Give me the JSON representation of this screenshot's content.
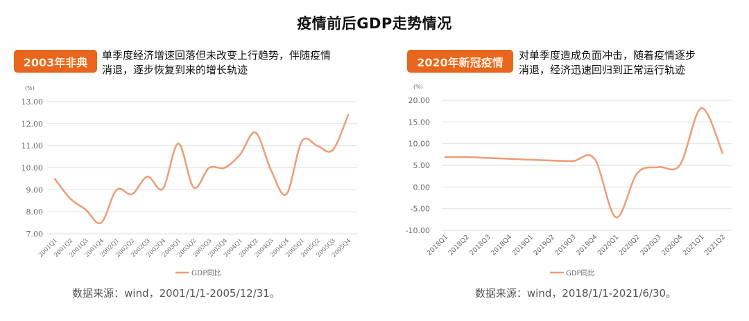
{
  "title": "疫情前后GDP走势情况",
  "colors": {
    "badge": "#E8651E",
    "badge_text": "#FFEFD9",
    "line": "#EC9F78",
    "grid": "#E3E3E3",
    "axis_text": "#666666"
  },
  "panels": [
    {
      "badge": "2003年非典",
      "description_line1": "单季度经济增速回落但未改变上行趋势，伴随疫情",
      "description_line2": "消退，逐步恢复到来的增长轨迹",
      "source": "数据来源：wind，2001/1/1-2005/12/31。"
    },
    {
      "badge": "2020年新冠疫情",
      "description_line1": "对单季度造成负面冲击，随着疫情逐步",
      "description_line2": "消退，经济迅速回归到正常运行轨迹",
      "source": "数据来源：wind，2018/1/1-2021/6/30。"
    }
  ],
  "chart_data": [
    {
      "type": "line",
      "title": "2003年非典",
      "ylabel": "(%)",
      "xlabel": "",
      "ylim": [
        7,
        13
      ],
      "yticks": [
        "7.00",
        "8.00",
        "9.00",
        "10.00",
        "11.00",
        "12.00",
        "13.00"
      ],
      "ytick_values": [
        7,
        8,
        9,
        10,
        11,
        12,
        13
      ],
      "grid": true,
      "legend_position": "bottom",
      "categories": [
        "2001Q1",
        "2001Q2",
        "2001Q3",
        "2001Q4",
        "2002Q1",
        "2002Q2",
        "2002Q3",
        "2002Q4",
        "2003Q1",
        "2003Q2",
        "2003Q3",
        "2003Q4",
        "2004Q1",
        "2004Q2",
        "2004Q3",
        "2004Q4",
        "2005Q1",
        "2005Q2",
        "2005Q3",
        "2005Q4"
      ],
      "series": [
        {
          "name": "GDP同比",
          "values": [
            9.5,
            8.6,
            8.1,
            7.5,
            9.0,
            8.8,
            9.6,
            9.05,
            11.1,
            9.1,
            10.0,
            10.0,
            10.6,
            11.6,
            9.9,
            8.8,
            11.2,
            11.0,
            10.8,
            12.4
          ]
        }
      ]
    },
    {
      "type": "line",
      "title": "2020年新冠疫情",
      "ylabel": "(%)",
      "xlabel": "",
      "ylim": [
        -10,
        20
      ],
      "yticks": [
        "-10.00",
        "-5.00",
        "0.00",
        "5.00",
        "10.00",
        "15.00",
        "20.00"
      ],
      "ytick_values": [
        -10,
        -5,
        0,
        5,
        10,
        15,
        20
      ],
      "grid": true,
      "legend_position": "bottom",
      "categories": [
        "2018Q1",
        "2018Q2",
        "2018Q3",
        "2018Q4",
        "2019Q1",
        "2019Q2",
        "2019Q3",
        "2019Q4",
        "2020Q1",
        "2020Q2",
        "2020Q3",
        "2020Q4",
        "2021Q1",
        "2021Q2"
      ],
      "series": [
        {
          "name": "GDP同比",
          "values": [
            6.9,
            6.9,
            6.7,
            6.5,
            6.3,
            6.1,
            6.0,
            6.5,
            -7.0,
            3.2,
            4.6,
            5.1,
            18.2,
            7.8
          ]
        }
      ]
    }
  ]
}
